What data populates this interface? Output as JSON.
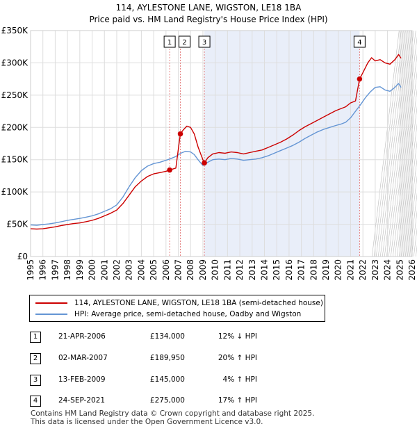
{
  "title_line1": "114, AYLESTONE LANE, WIGSTON, LE18 1BA",
  "title_line2": "Price paid vs. HM Land Registry's House Price Index (HPI)",
  "colors": {
    "property": "#cc0000",
    "hpi": "#6495d4",
    "shade": "#e9eef9",
    "marker_line": "#e06666"
  },
  "legend": {
    "property": "114, AYLESTONE LANE, WIGSTON, LE18 1BA (semi-detached house)",
    "hpi": "HPI: Average price, semi-detached house, Oadby and Wigston"
  },
  "transactions": [
    {
      "num": "1",
      "date": "21-APR-2006",
      "price": "£134,000",
      "hpi": "12% ↓ HPI"
    },
    {
      "num": "2",
      "date": "02-MAR-2007",
      "price": "£189,950",
      "hpi": "20% ↑ HPI"
    },
    {
      "num": "3",
      "date": "13-FEB-2009",
      "price": "£145,000",
      "hpi": "4% ↑ HPI"
    },
    {
      "num": "4",
      "date": "24-SEP-2021",
      "price": "£275,000",
      "hpi": "17% ↑ HPI"
    }
  ],
  "footer_line1": "Contains HM Land Registry data © Crown copyright and database right 2025.",
  "footer_line2": "This data is licensed under the Open Government Licence v3.0.",
  "chart_data": {
    "type": "line",
    "title": "114, AYLESTONE LANE, WIGSTON, LE18 1BA",
    "subtitle": "Price paid vs. HM Land Registry's House Price Index (HPI)",
    "xlabel": "",
    "ylabel": "",
    "xlim": [
      1995,
      2026
    ],
    "ylim": [
      0,
      350000
    ],
    "x_ticks": [
      1995,
      1996,
      1997,
      1998,
      1999,
      2000,
      2001,
      2002,
      2003,
      2004,
      2005,
      2006,
      2007,
      2008,
      2009,
      2010,
      2011,
      2012,
      2013,
      2014,
      2015,
      2016,
      2017,
      2018,
      2019,
      2020,
      2021,
      2022,
      2023,
      2024,
      2025,
      2026
    ],
    "y_ticks": [
      {
        "value": 0,
        "label": "£0"
      },
      {
        "value": 50000,
        "label": "£50K"
      },
      {
        "value": 100000,
        "label": "£100K"
      },
      {
        "value": 150000,
        "label": "£150K"
      },
      {
        "value": 200000,
        "label": "£200K"
      },
      {
        "value": 250000,
        "label": "£250K"
      },
      {
        "value": 300000,
        "label": "£300K"
      },
      {
        "value": 350000,
        "label": "£350K"
      }
    ],
    "grid": true,
    "shaded_range": [
      2009.12,
      2021.73
    ],
    "future_hatch_from": 2025.0,
    "series": [
      {
        "name": "HPI: Average price, semi-detached house, Oadby and Wigston",
        "x": [
          1995,
          1995.5,
          1996,
          1996.5,
          1997,
          1997.5,
          1998,
          1998.5,
          1999,
          1999.5,
          2000,
          2000.5,
          2001,
          2001.5,
          2002,
          2002.5,
          2003,
          2003.5,
          2004,
          2004.5,
          2005,
          2005.5,
          2006,
          2006.3,
          2006.8,
          2007.2,
          2007.6,
          2008,
          2008.3,
          2008.6,
          2009,
          2009.4,
          2009.8,
          2010.3,
          2010.8,
          2011.3,
          2011.8,
          2012.3,
          2012.8,
          2013.3,
          2013.8,
          2014.3,
          2014.8,
          2015.3,
          2015.8,
          2016.3,
          2016.8,
          2017.3,
          2017.8,
          2018.3,
          2018.8,
          2019.3,
          2019.8,
          2020.2,
          2020.6,
          2021,
          2021.4,
          2021.8,
          2022.2,
          2022.6,
          2023,
          2023.4,
          2023.8,
          2024.2,
          2024.6,
          2024.9,
          2025.1
        ],
        "y": [
          49000,
          48500,
          49500,
          50500,
          52000,
          54000,
          56000,
          57500,
          59000,
          61000,
          63000,
          66000,
          70000,
          74000,
          80000,
          92000,
          108000,
          122000,
          133000,
          140000,
          144000,
          146000,
          149000,
          151000,
          155000,
          160000,
          163000,
          162000,
          158000,
          150000,
          141000,
          146000,
          150000,
          151000,
          150000,
          152000,
          151000,
          149000,
          150000,
          151000,
          153000,
          156000,
          160000,
          164000,
          168000,
          172000,
          177000,
          183000,
          188000,
          193000,
          197000,
          200000,
          203000,
          205000,
          208000,
          215000,
          225000,
          235000,
          246000,
          255000,
          262000,
          263000,
          258000,
          256000,
          262000,
          268000,
          262000
        ]
      },
      {
        "name": "114, AYLESTONE LANE, WIGSTON, LE18 1BA (semi-detached house)",
        "x": [
          1995,
          1995.5,
          1996,
          1996.5,
          1997,
          1997.5,
          1998,
          1998.5,
          1999,
          1999.5,
          2000,
          2000.5,
          2001,
          2001.5,
          2002,
          2002.5,
          2003,
          2003.5,
          2004,
          2004.5,
          2005,
          2005.5,
          2006,
          2006.3,
          2006.8,
          2007.17,
          2007.4,
          2007.7,
          2008,
          2008.3,
          2008.6,
          2009,
          2009.12,
          2009.4,
          2009.8,
          2010.3,
          2010.8,
          2011.3,
          2011.8,
          2012.3,
          2012.8,
          2013.3,
          2013.8,
          2014.3,
          2014.8,
          2015.3,
          2015.8,
          2016.3,
          2016.8,
          2017.3,
          2017.8,
          2018.3,
          2018.8,
          2019.3,
          2019.8,
          2020.2,
          2020.6,
          2021,
          2021.4,
          2021.73,
          2022,
          2022.4,
          2022.7,
          2023,
          2023.4,
          2023.8,
          2024.2,
          2024.6,
          2024.9,
          2025.1
        ],
        "y": [
          43000,
          42500,
          43000,
          44500,
          46000,
          48000,
          49500,
          51000,
          52000,
          54000,
          56000,
          59000,
          63000,
          67000,
          72000,
          82000,
          95000,
          108000,
          117000,
          124000,
          128000,
          130000,
          132000,
          134000,
          137000,
          189950,
          196000,
          202000,
          200000,
          190000,
          170000,
          150000,
          145000,
          153000,
          159000,
          161000,
          160000,
          162000,
          161000,
          159000,
          161000,
          163000,
          165000,
          169000,
          173000,
          177000,
          182000,
          188000,
          195000,
          201000,
          206000,
          211000,
          216000,
          221000,
          226000,
          229000,
          232000,
          238000,
          241000,
          275000,
          285000,
          300000,
          308000,
          303000,
          305000,
          300000,
          298000,
          305000,
          313000,
          307000
        ]
      }
    ],
    "sales": [
      {
        "num": "1",
        "year": 2006.3,
        "price": 134000
      },
      {
        "num": "2",
        "year": 2007.17,
        "price": 189950
      },
      {
        "num": "3",
        "year": 2009.12,
        "price": 145000
      },
      {
        "num": "4",
        "year": 2021.73,
        "price": 275000
      }
    ]
  }
}
